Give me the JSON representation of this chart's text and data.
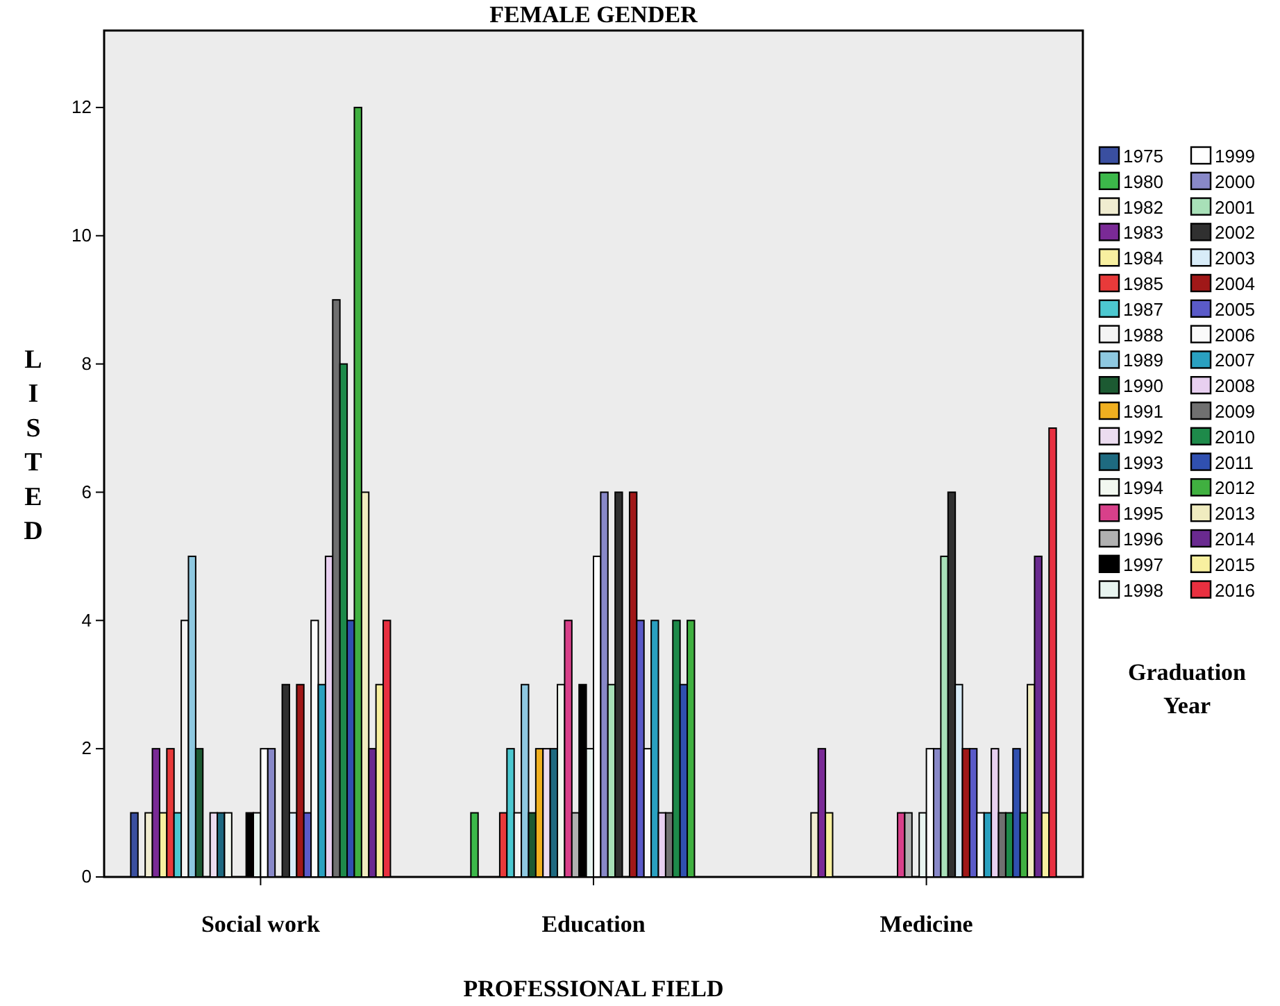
{
  "chart_data": {
    "type": "bar",
    "title": "FEMALE GENDER",
    "xlabel": "PROFESSIONAL FIELD",
    "ylabel": "LISTED",
    "legend_title": "Graduation Year",
    "legend": "right",
    "categories": [
      "Social work",
      "Education",
      "Medicine"
    ],
    "ylim": [
      0,
      13.2
    ],
    "yticks": [
      0,
      2,
      4,
      6,
      8,
      10,
      12
    ],
    "grid": false,
    "series": [
      {
        "name": "1975",
        "color": "#3a4fa0",
        "values": [
          1,
          null,
          null
        ]
      },
      {
        "name": "1980",
        "color": "#3cb84a",
        "values": [
          null,
          1,
          null
        ]
      },
      {
        "name": "1982",
        "color": "#f0ecd0",
        "values": [
          1,
          null,
          1
        ]
      },
      {
        "name": "1983",
        "color": "#7a2a96",
        "values": [
          2,
          null,
          2
        ]
      },
      {
        "name": "1984",
        "color": "#f8f0a0",
        "values": [
          1,
          null,
          1
        ]
      },
      {
        "name": "1985",
        "color": "#e83a3a",
        "values": [
          2,
          1,
          null
        ]
      },
      {
        "name": "1987",
        "color": "#4cc8d0",
        "values": [
          1,
          2,
          null
        ]
      },
      {
        "name": "1988",
        "color": "#f4f4f4",
        "values": [
          4,
          1,
          null
        ]
      },
      {
        "name": "1989",
        "color": "#8ec8e0",
        "values": [
          5,
          3,
          null
        ]
      },
      {
        "name": "1990",
        "color": "#1c5a32",
        "values": [
          2,
          1,
          null
        ]
      },
      {
        "name": "1991",
        "color": "#f0b020",
        "values": [
          null,
          2,
          null
        ]
      },
      {
        "name": "1992",
        "color": "#ecdcf0",
        "values": [
          1,
          2,
          null
        ]
      },
      {
        "name": "1993",
        "color": "#1e6a80",
        "values": [
          1,
          2,
          null
        ]
      },
      {
        "name": "1994",
        "color": "#f2f8f0",
        "values": [
          1,
          3,
          null
        ]
      },
      {
        "name": "1995",
        "color": "#d8408a",
        "values": [
          null,
          4,
          1
        ]
      },
      {
        "name": "1996",
        "color": "#b0b0b0",
        "values": [
          null,
          1,
          1
        ]
      },
      {
        "name": "1997",
        "color": "#000000",
        "values": [
          1,
          3,
          null
        ]
      },
      {
        "name": "1998",
        "color": "#e8f4f0",
        "values": [
          1,
          2,
          1
        ]
      },
      {
        "name": "1999",
        "color": "#ffffff",
        "values": [
          2,
          5,
          2
        ]
      },
      {
        "name": "2000",
        "color": "#8888c8",
        "values": [
          2,
          6,
          2
        ]
      },
      {
        "name": "2001",
        "color": "#a8e0b8",
        "values": [
          null,
          3,
          5
        ]
      },
      {
        "name": "2002",
        "color": "#303030",
        "values": [
          3,
          6,
          6
        ]
      },
      {
        "name": "2003",
        "color": "#d8ecf8",
        "values": [
          1,
          null,
          3
        ]
      },
      {
        "name": "2004",
        "color": "#a01818",
        "values": [
          3,
          6,
          2
        ]
      },
      {
        "name": "2005",
        "color": "#5a5ac8",
        "values": [
          1,
          4,
          2
        ]
      },
      {
        "name": "2006",
        "color": "#fafafa",
        "values": [
          4,
          2,
          1
        ]
      },
      {
        "name": "2007",
        "color": "#2aa0c0",
        "values": [
          3,
          4,
          1
        ]
      },
      {
        "name": "2008",
        "color": "#e8d0f0",
        "values": [
          5,
          1,
          2
        ]
      },
      {
        "name": "2009",
        "color": "#707070",
        "values": [
          9,
          1,
          1
        ]
      },
      {
        "name": "2010",
        "color": "#1e8a4a",
        "values": [
          8,
          4,
          1
        ]
      },
      {
        "name": "2011",
        "color": "#3050b0",
        "values": [
          4,
          3,
          2
        ]
      },
      {
        "name": "2012",
        "color": "#40b040",
        "values": [
          12,
          4,
          1
        ]
      },
      {
        "name": "2013",
        "color": "#f0ecc0",
        "values": [
          6,
          null,
          3
        ]
      },
      {
        "name": "2014",
        "color": "#6a2a90",
        "values": [
          2,
          null,
          5
        ]
      },
      {
        "name": "2015",
        "color": "#f8f0a0",
        "values": [
          3,
          null,
          1
        ]
      },
      {
        "name": "2016",
        "color": "#e83040",
        "values": [
          4,
          null,
          7
        ]
      }
    ]
  }
}
